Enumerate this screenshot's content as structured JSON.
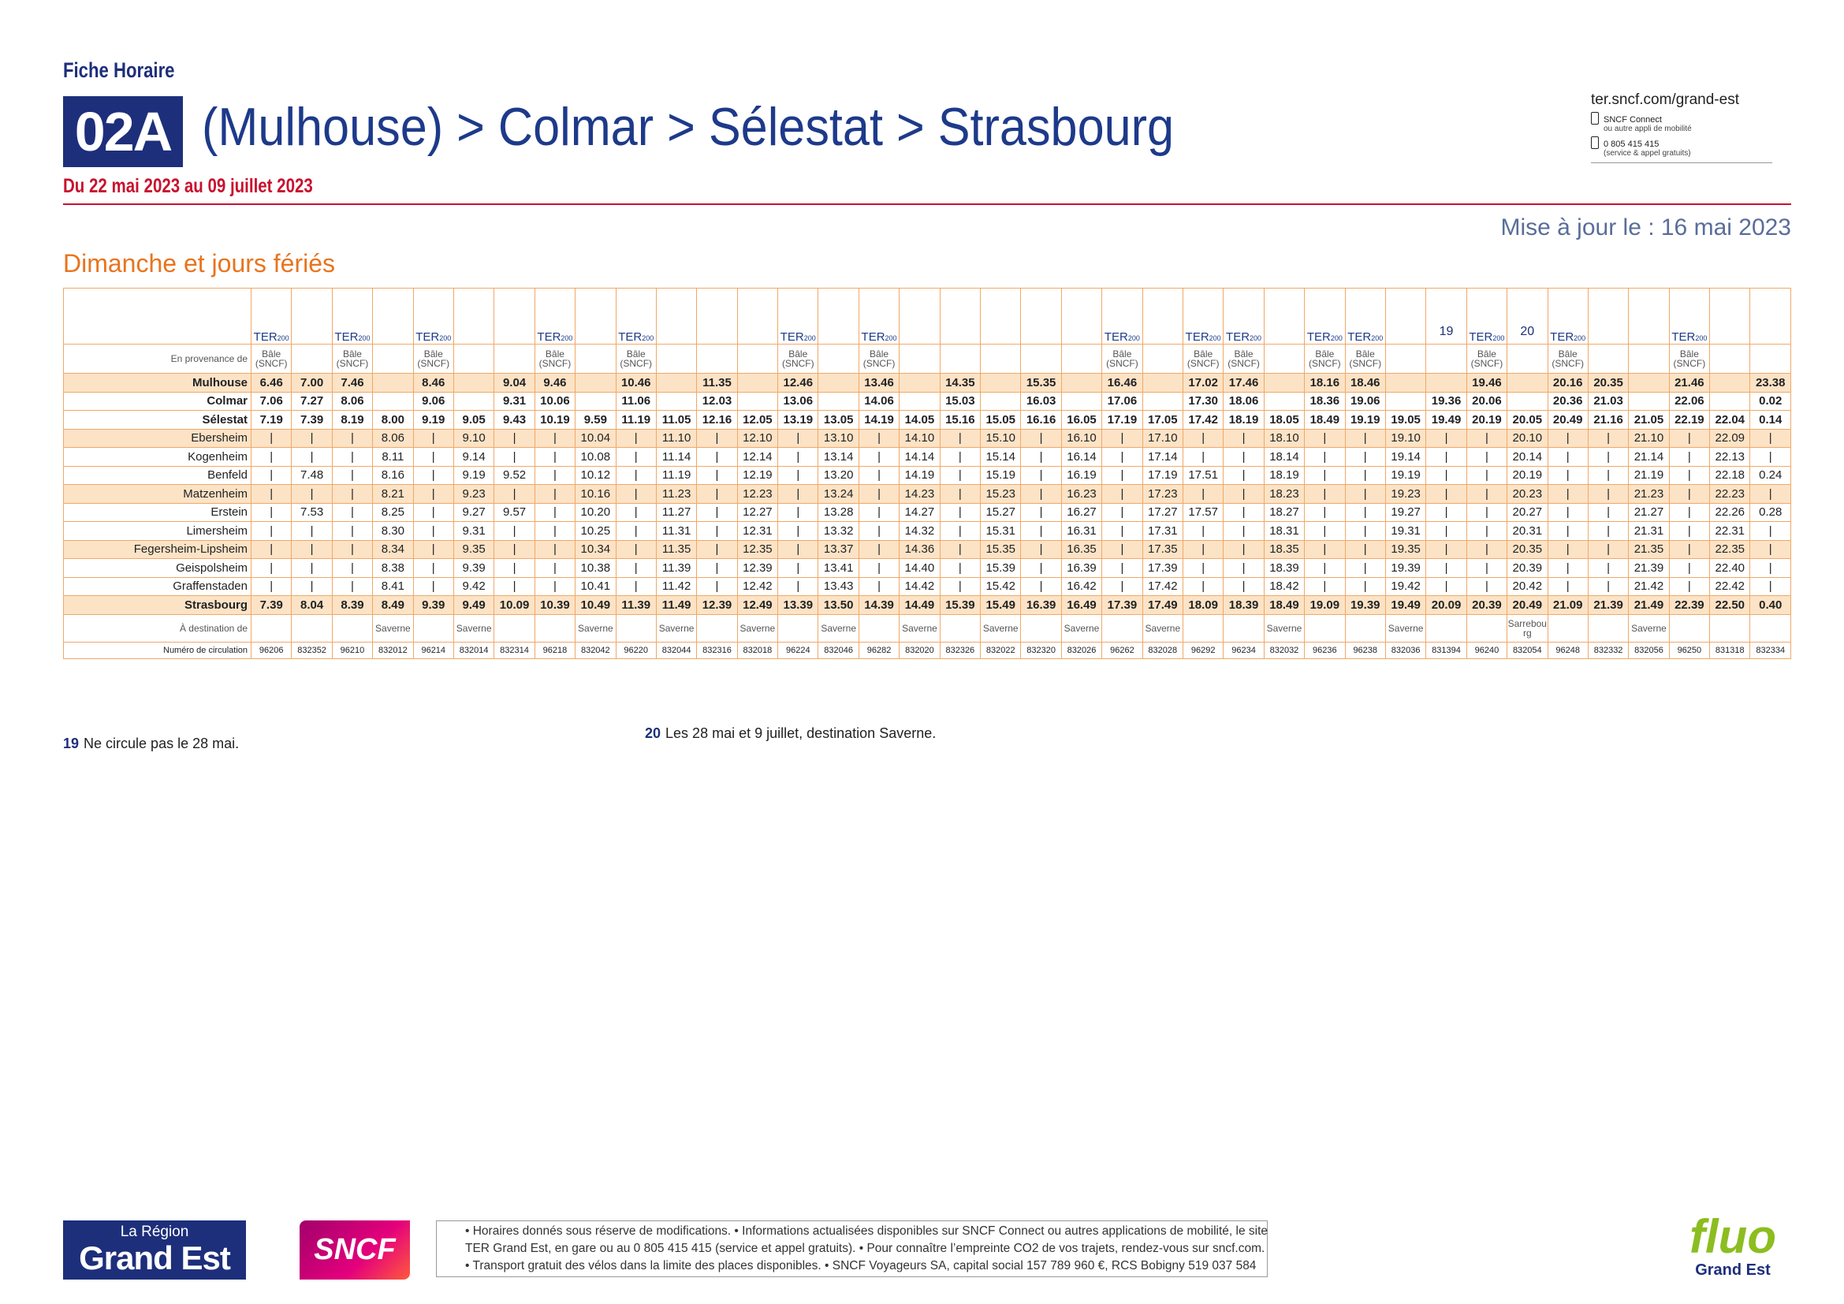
{
  "header": {
    "kicker": "Fiche Horaire",
    "line": "02A",
    "title": "(Mulhouse) > Colmar > Sélestat > Strasbourg",
    "period": "Du 22 mai 2023 au 09 juillet 2023",
    "contact": {
      "site": "ter.sncf.com/grand-est",
      "app": "SNCF Connect",
      "app_note": "ou autre appli de mobilité",
      "phone": "0 805 415 415",
      "phone_note": "(service & appel gratuits)"
    },
    "updated": "Mise à jour le : 16 mai 2023",
    "day_type": "Dimanche et jours fériés"
  },
  "table": {
    "ter_label": "TER",
    "ter_sub": "200",
    "origin_label": "En provenance de",
    "destination_label": "À destination de",
    "number_label": "Numéro de circulation",
    "stations": [
      "Mulhouse",
      "Colmar",
      "Sélestat",
      "Ebersheim",
      "Kogenheim",
      "Benfeld",
      "Matzenheim",
      "Erstein",
      "Limersheim",
      "Fegersheim-Lipsheim",
      "Geispolsheim",
      "Graffenstaden",
      "Strasbourg"
    ],
    "columns": [
      {
        "number": "96206",
        "ter": true,
        "origin": "Bâle (SNCF)",
        "times": [
          "6.46",
          "7.06",
          "7.19",
          "|",
          "|",
          "|",
          "|",
          "|",
          "|",
          "|",
          "|",
          "|",
          "7.39"
        ]
      },
      {
        "number": "832352",
        "ter": false,
        "times": [
          "7.00",
          "7.27",
          "7.39",
          "|",
          "|",
          "7.48",
          "|",
          "7.53",
          "|",
          "|",
          "|",
          "|",
          "8.04"
        ]
      },
      {
        "number": "96210",
        "ter": true,
        "origin": "Bâle (SNCF)",
        "times": [
          "7.46",
          "8.06",
          "8.19",
          "|",
          "|",
          "|",
          "|",
          "|",
          "|",
          "|",
          "|",
          "|",
          "8.39"
        ]
      },
      {
        "number": "832012",
        "ter": false,
        "destination": "Saverne",
        "times": [
          null,
          null,
          "8.00",
          "8.06",
          "8.11",
          "8.16",
          "8.21",
          "8.25",
          "8.30",
          "8.34",
          "8.38",
          "8.41",
          "8.49"
        ]
      },
      {
        "number": "96214",
        "ter": true,
        "origin": "Bâle (SNCF)",
        "times": [
          "8.46",
          "9.06",
          "9.19",
          "|",
          "|",
          "|",
          "|",
          "|",
          "|",
          "|",
          "|",
          "|",
          "9.39"
        ]
      },
      {
        "number": "832014",
        "ter": false,
        "destination": "Saverne",
        "times": [
          null,
          null,
          "9.05",
          "9.10",
          "9.14",
          "9.19",
          "9.23",
          "9.27",
          "9.31",
          "9.35",
          "9.39",
          "9.42",
          "9.49"
        ]
      },
      {
        "number": "832314",
        "ter": false,
        "times": [
          "9.04",
          "9.31",
          "9.43",
          "|",
          "|",
          "9.52",
          "|",
          "9.57",
          "|",
          "|",
          "|",
          "|",
          "10.09"
        ]
      },
      {
        "number": "96218",
        "ter": true,
        "origin": "Bâle (SNCF)",
        "times": [
          "9.46",
          "10.06",
          "10.19",
          "|",
          "|",
          "|",
          "|",
          "|",
          "|",
          "|",
          "|",
          "|",
          "10.39"
        ]
      },
      {
        "number": "832042",
        "ter": false,
        "destination": "Saverne",
        "times": [
          null,
          null,
          "9.59",
          "10.04",
          "10.08",
          "10.12",
          "10.16",
          "10.20",
          "10.25",
          "10.34",
          "10.38",
          "10.41",
          "10.49"
        ]
      },
      {
        "number": "96220",
        "ter": true,
        "origin": "Bâle (SNCF)",
        "times": [
          "10.46",
          "11.06",
          "11.19",
          "|",
          "|",
          "|",
          "|",
          "|",
          "|",
          "|",
          "|",
          "|",
          "11.39"
        ]
      },
      {
        "number": "832044",
        "ter": false,
        "destination": "Saverne",
        "times": [
          null,
          null,
          "11.05",
          "11.10",
          "11.14",
          "11.19",
          "11.23",
          "11.27",
          "11.31",
          "11.35",
          "11.39",
          "11.42",
          "11.49"
        ]
      },
      {
        "number": "832316",
        "ter": false,
        "times": [
          "11.35",
          "12.03",
          "12.16",
          "|",
          "|",
          "|",
          "|",
          "|",
          "|",
          "|",
          "|",
          "|",
          "12.39"
        ]
      },
      {
        "number": "832018",
        "ter": false,
        "destination": "Saverne",
        "times": [
          null,
          null,
          "12.05",
          "12.10",
          "12.14",
          "12.19",
          "12.23",
          "12.27",
          "12.31",
          "12.35",
          "12.39",
          "12.42",
          "12.49"
        ]
      },
      {
        "number": "96224",
        "ter": true,
        "origin": "Bâle (SNCF)",
        "times": [
          "12.46",
          "13.06",
          "13.19",
          "|",
          "|",
          "|",
          "|",
          "|",
          "|",
          "|",
          "|",
          "|",
          "13.39"
        ]
      },
      {
        "number": "832046",
        "ter": false,
        "destination": "Saverne",
        "times": [
          null,
          null,
          "13.05",
          "13.10",
          "13.14",
          "13.20",
          "13.24",
          "13.28",
          "13.32",
          "13.37",
          "13.41",
          "13.43",
          "13.50"
        ]
      },
      {
        "number": "96282",
        "ter": true,
        "origin": "Bâle (SNCF)",
        "times": [
          "13.46",
          "14.06",
          "14.19",
          "|",
          "|",
          "|",
          "|",
          "|",
          "|",
          "|",
          "|",
          "|",
          "14.39"
        ]
      },
      {
        "number": "832020",
        "ter": false,
        "destination": "Saverne",
        "times": [
          null,
          null,
          "14.05",
          "14.10",
          "14.14",
          "14.19",
          "14.23",
          "14.27",
          "14.32",
          "14.36",
          "14.40",
          "14.42",
          "14.49"
        ]
      },
      {
        "number": "832326",
        "ter": false,
        "times": [
          "14.35",
          "15.03",
          "15.16",
          "|",
          "|",
          "|",
          "|",
          "|",
          "|",
          "|",
          "|",
          "|",
          "15.39"
        ]
      },
      {
        "number": "832022",
        "ter": false,
        "destination": "Saverne",
        "times": [
          null,
          null,
          "15.05",
          "15.10",
          "15.14",
          "15.19",
          "15.23",
          "15.27",
          "15.31",
          "15.35",
          "15.39",
          "15.42",
          "15.49"
        ]
      },
      {
        "number": "832320",
        "ter": false,
        "times": [
          "15.35",
          "16.03",
          "16.16",
          "|",
          "|",
          "|",
          "|",
          "|",
          "|",
          "|",
          "|",
          "|",
          "16.39"
        ]
      },
      {
        "number": "832026",
        "ter": false,
        "destination": "Saverne",
        "times": [
          null,
          null,
          "16.05",
          "16.10",
          "16.14",
          "16.19",
          "16.23",
          "16.27",
          "16.31",
          "16.35",
          "16.39",
          "16.42",
          "16.49"
        ]
      },
      {
        "number": "96262",
        "ter": true,
        "origin": "Bâle (SNCF)",
        "times": [
          "16.46",
          "17.06",
          "17.19",
          "|",
          "|",
          "|",
          "|",
          "|",
          "|",
          "|",
          "|",
          "|",
          "17.39"
        ]
      },
      {
        "number": "832028",
        "ter": false,
        "destination": "Saverne",
        "times": [
          null,
          null,
          "17.05",
          "17.10",
          "17.14",
          "17.19",
          "17.23",
          "17.27",
          "17.31",
          "17.35",
          "17.39",
          "17.42",
          "17.49"
        ]
      },
      {
        "number": "96292",
        "ter": true,
        "origin": "Bâle (SNCF)",
        "times": [
          "17.02",
          "17.30",
          "17.42",
          "|",
          "|",
          "17.51",
          "|",
          "17.57",
          "|",
          "|",
          "|",
          "|",
          "18.09"
        ]
      },
      {
        "number": "96234",
        "ter": true,
        "origin": "Bâle (SNCF)",
        "times": [
          "17.46",
          "18.06",
          "18.19",
          "|",
          "|",
          "|",
          "|",
          "|",
          "|",
          "|",
          "|",
          "|",
          "18.39"
        ]
      },
      {
        "number": "832032",
        "ter": false,
        "destination": "Saverne",
        "times": [
          null,
          null,
          "18.05",
          "18.10",
          "18.14",
          "18.19",
          "18.23",
          "18.27",
          "18.31",
          "18.35",
          "18.39",
          "18.42",
          "18.49"
        ]
      },
      {
        "number": "96236",
        "ter": true,
        "origin": "Bâle (SNCF)",
        "times": [
          "18.16",
          "18.36",
          "18.49",
          "|",
          "|",
          "|",
          "|",
          "|",
          "|",
          "|",
          "|",
          "|",
          "19.09"
        ]
      },
      {
        "number": "96238",
        "ter": true,
        "origin": "Bâle (SNCF)",
        "times": [
          "18.46",
          "19.06",
          "19.19",
          "|",
          "|",
          "|",
          "|",
          "|",
          "|",
          "|",
          "|",
          "|",
          "19.39"
        ]
      },
      {
        "number": "832036",
        "ter": false,
        "destination": "Saverne",
        "times": [
          null,
          null,
          "19.05",
          "19.10",
          "19.14",
          "19.19",
          "19.23",
          "19.27",
          "19.31",
          "19.35",
          "19.39",
          "19.42",
          "19.49"
        ]
      },
      {
        "number": "831394",
        "ter": false,
        "note": "19",
        "times": [
          null,
          "19.36",
          "19.49",
          "|",
          "|",
          "|",
          "|",
          "|",
          "|",
          "|",
          "|",
          "|",
          "20.09"
        ]
      },
      {
        "number": "96240",
        "ter": true,
        "origin": "Bâle (SNCF)",
        "times": [
          "19.46",
          "20.06",
          "20.19",
          "|",
          "|",
          "|",
          "|",
          "|",
          "|",
          "|",
          "|",
          "|",
          "20.39"
        ]
      },
      {
        "number": "832054",
        "ter": false,
        "note": "20",
        "destination": "Sarrebourg",
        "times": [
          null,
          null,
          "20.05",
          "20.10",
          "20.14",
          "20.19",
          "20.23",
          "20.27",
          "20.31",
          "20.35",
          "20.39",
          "20.42",
          "20.49"
        ]
      },
      {
        "number": "96248",
        "ter": true,
        "origin": "Bâle (SNCF)",
        "times": [
          "20.16",
          "20.36",
          "20.49",
          "|",
          "|",
          "|",
          "|",
          "|",
          "|",
          "|",
          "|",
          "|",
          "21.09"
        ]
      },
      {
        "number": "832332",
        "ter": false,
        "times": [
          "20.35",
          "21.03",
          "21.16",
          "|",
          "|",
          "|",
          "|",
          "|",
          "|",
          "|",
          "|",
          "|",
          "21.39"
        ]
      },
      {
        "number": "832056",
        "ter": false,
        "destination": "Saverne",
        "times": [
          null,
          null,
          "21.05",
          "21.10",
          "21.14",
          "21.19",
          "21.23",
          "21.27",
          "21.31",
          "21.35",
          "21.39",
          "21.42",
          "21.49"
        ]
      },
      {
        "number": "96250",
        "ter": true,
        "origin": "Bâle (SNCF)",
        "times": [
          "21.46",
          "22.06",
          "22.19",
          "|",
          "|",
          "|",
          "|",
          "|",
          "|",
          "|",
          "|",
          "|",
          "22.39"
        ]
      },
      {
        "number": "831318",
        "ter": false,
        "times": [
          null,
          null,
          "22.04",
          "22.09",
          "22.13",
          "22.18",
          "22.23",
          "22.26",
          "22.31",
          "22.35",
          "22.40",
          "22.42",
          "22.50"
        ]
      },
      {
        "number": "832334",
        "ter": false,
        "times": [
          "23.38",
          "0.02",
          "0.14",
          "|",
          "|",
          "0.24",
          "|",
          "0.28",
          "|",
          "|",
          "|",
          "|",
          "0.40"
        ]
      }
    ]
  },
  "footnotes": [
    {
      "mark": "19",
      "text": "Ne circule pas le 28 mai."
    },
    {
      "mark": "20",
      "text": "Les 28 mai et 9 juillet, destination Saverne."
    }
  ],
  "footer": {
    "region_small": "La Région",
    "region_big": "Grand Est",
    "sncf": "SNCF",
    "disclaimer": [
      "• Horaires donnés sous réserve de modifications. • Informations actualisées disponibles sur SNCF Connect ou autres applications de mobilité, le site",
      "TER Grand Est, en gare ou au 0 805 415 415 (service et appel gratuits). • Pour connaître l’empreinte CO2 de vos trajets, rendez-vous sur sncf.com.",
      "• Transport gratuit des vélos dans la limite des places disponibles. • SNCF Voyageurs SA, capital social 157 789 960 €, RCS Bobigny 519 037 584"
    ],
    "fluo": "fluo",
    "fluo_sub": "Grand Est"
  }
}
